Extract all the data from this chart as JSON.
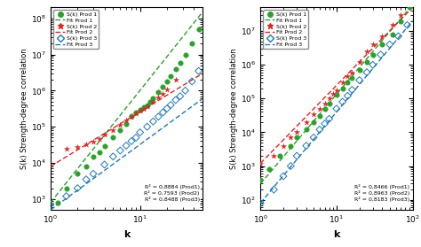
{
  "left": {
    "xlabel": "k",
    "ylabel": "S(k) Strength-degree correlation",
    "xlim": [
      1,
      50
    ],
    "ylim": [
      500.0,
      200000000.0
    ],
    "r2_text": "R² = 0,8884 (Prod1)\nR² = 0,7593 (Prod2)\nR² = 0,8488 (Prod3)",
    "prod1_x": [
      1.0,
      1.2,
      1.5,
      2,
      2.5,
      3,
      3.5,
      4,
      5,
      6,
      7,
      8,
      9,
      10,
      11,
      12,
      13,
      14,
      16,
      18,
      20,
      22,
      25,
      28,
      32,
      38,
      45
    ],
    "prod1_y": [
      300.0,
      800.0,
      2000.0,
      5000.0,
      8000.0,
      15000.0,
      20000.0,
      30000.0,
      50000.0,
      80000.0,
      120000.0,
      200000.0,
      250000.0,
      300000.0,
      350000.0,
      400000.0,
      500000.0,
      600000.0,
      900000.0,
      1300000.0,
      1800000.0,
      2500000.0,
      4000000.0,
      6000000.0,
      10000000.0,
      20000000.0,
      50000000.0
    ],
    "prod1_fit_x": [
      1,
      50
    ],
    "prod1_fit_y": [
      800.0,
      150000000.0
    ],
    "prod2_x": [
      1.5,
      2,
      2.5,
      3,
      3.5,
      4,
      5,
      6,
      7,
      8,
      9,
      10,
      11,
      12,
      14,
      16,
      18,
      20,
      25
    ],
    "prod2_y": [
      25000.0,
      28000.0,
      32000.0,
      38000.0,
      45000.0,
      60000.0,
      80000.0,
      110000.0,
      150000.0,
      190000.0,
      230000.0,
      280000.0,
      320000.0,
      380000.0,
      500000.0,
      650000.0,
      800000.0,
      1100000.0,
      2000000.0
    ],
    "prod2_fit_x": [
      1,
      50
    ],
    "prod2_fit_y": [
      8000.0,
      3000000.0
    ],
    "prod3_x": [
      1.0,
      1.5,
      2,
      2.5,
      3,
      4,
      5,
      6,
      7,
      8,
      9,
      10,
      12,
      14,
      16,
      18,
      20,
      22,
      25,
      28,
      32,
      38,
      45
    ],
    "prod3_y": [
      700.0,
      1200.0,
      2000.0,
      3500.0,
      5000.0,
      9000.0,
      15000.0,
      22000.0,
      30000.0,
      40000.0,
      50000.0,
      70000.0,
      100000.0,
      140000.0,
      190000.0,
      250000.0,
      320000.0,
      400000.0,
      550000.0,
      700000.0,
      1000000.0,
      1800000.0,
      3500000.0
    ],
    "prod3_fit_x": [
      1,
      50
    ],
    "prod3_fit_y": [
      500.0,
      600000.0
    ]
  },
  "right": {
    "xlabel": "k",
    "ylabel": "S(k) Strength-degree correlation",
    "xlim": [
      1,
      100
    ],
    "ylim": [
      50.0,
      50000000.0
    ],
    "r2_text": "R² = 0,8466 (Prod1)\nR² = 0,8963 (Prod2)\nR² = 0,8183 (Prod3)",
    "prod1_x": [
      1.0,
      1.3,
      1.8,
      2.5,
      3,
      4,
      5,
      6,
      7,
      8,
      10,
      12,
      14,
      16,
      20,
      25,
      30,
      40,
      55,
      70,
      90
    ],
    "prod1_y": [
      400.0,
      800.0,
      2000.0,
      4000.0,
      7000.0,
      12000.0,
      20000.0,
      30000.0,
      50000.0,
      70000.0,
      130000.0,
      200000.0,
      300000.0,
      400000.0,
      700000.0,
      1200000.0,
      2000000.0,
      4000000.0,
      8000000.0,
      20000000.0,
      50000000.0
    ],
    "prod1_fit_x": [
      1,
      100
    ],
    "prod1_fit_y": [
      300.0,
      60000000.0
    ],
    "prod2_x": [
      1.0,
      1.5,
      2,
      2.5,
      3,
      4,
      5,
      6,
      7,
      8,
      9,
      10,
      12,
      14,
      16,
      20,
      25,
      30,
      40,
      55,
      70
    ],
    "prod2_y": [
      1200.0,
      2000.0,
      4000.0,
      7000.0,
      10000.0,
      20000.0,
      35000.0,
      50000.0,
      70000.0,
      100000.0,
      140000.0,
      180000.0,
      300000.0,
      450000.0,
      600000.0,
      1200000.0,
      2500000.0,
      4000000.0,
      7000000.0,
      15000000.0,
      30000000.0
    ],
    "prod2_fit_x": [
      1,
      100
    ],
    "prod2_fit_y": [
      1200.0,
      50000000.0
    ],
    "prod3_x": [
      1.0,
      1.5,
      2,
      2.5,
      3,
      4,
      5,
      6,
      7,
      8,
      10,
      12,
      14,
      16,
      20,
      25,
      30,
      38,
      50,
      65,
      85
    ],
    "prod3_y": [
      80.0,
      200.0,
      500.0,
      1000.0,
      2000.0,
      4000.0,
      7000.0,
      12000.0,
      18000.0,
      25000.0,
      50000.0,
      80000.0,
      120000.0,
      180000.0,
      350000.0,
      600000.0,
      1000000.0,
      2000000.0,
      4000000.0,
      7000000.0,
      15000000.0
    ],
    "prod3_fit_x": [
      1,
      100
    ],
    "prod3_fit_y": [
      80.0,
      20000000.0
    ]
  },
  "colors": {
    "prod1": "#2ca02c",
    "prod2": "#d62728",
    "prod3": "#1f77b4"
  },
  "legend_labels": [
    "S(k) Prod 1",
    "Fit Prod 1",
    "S(k) Prod 2",
    "Fit Prod 2",
    "S(k) Prod 3",
    "Fit Prod 3"
  ]
}
